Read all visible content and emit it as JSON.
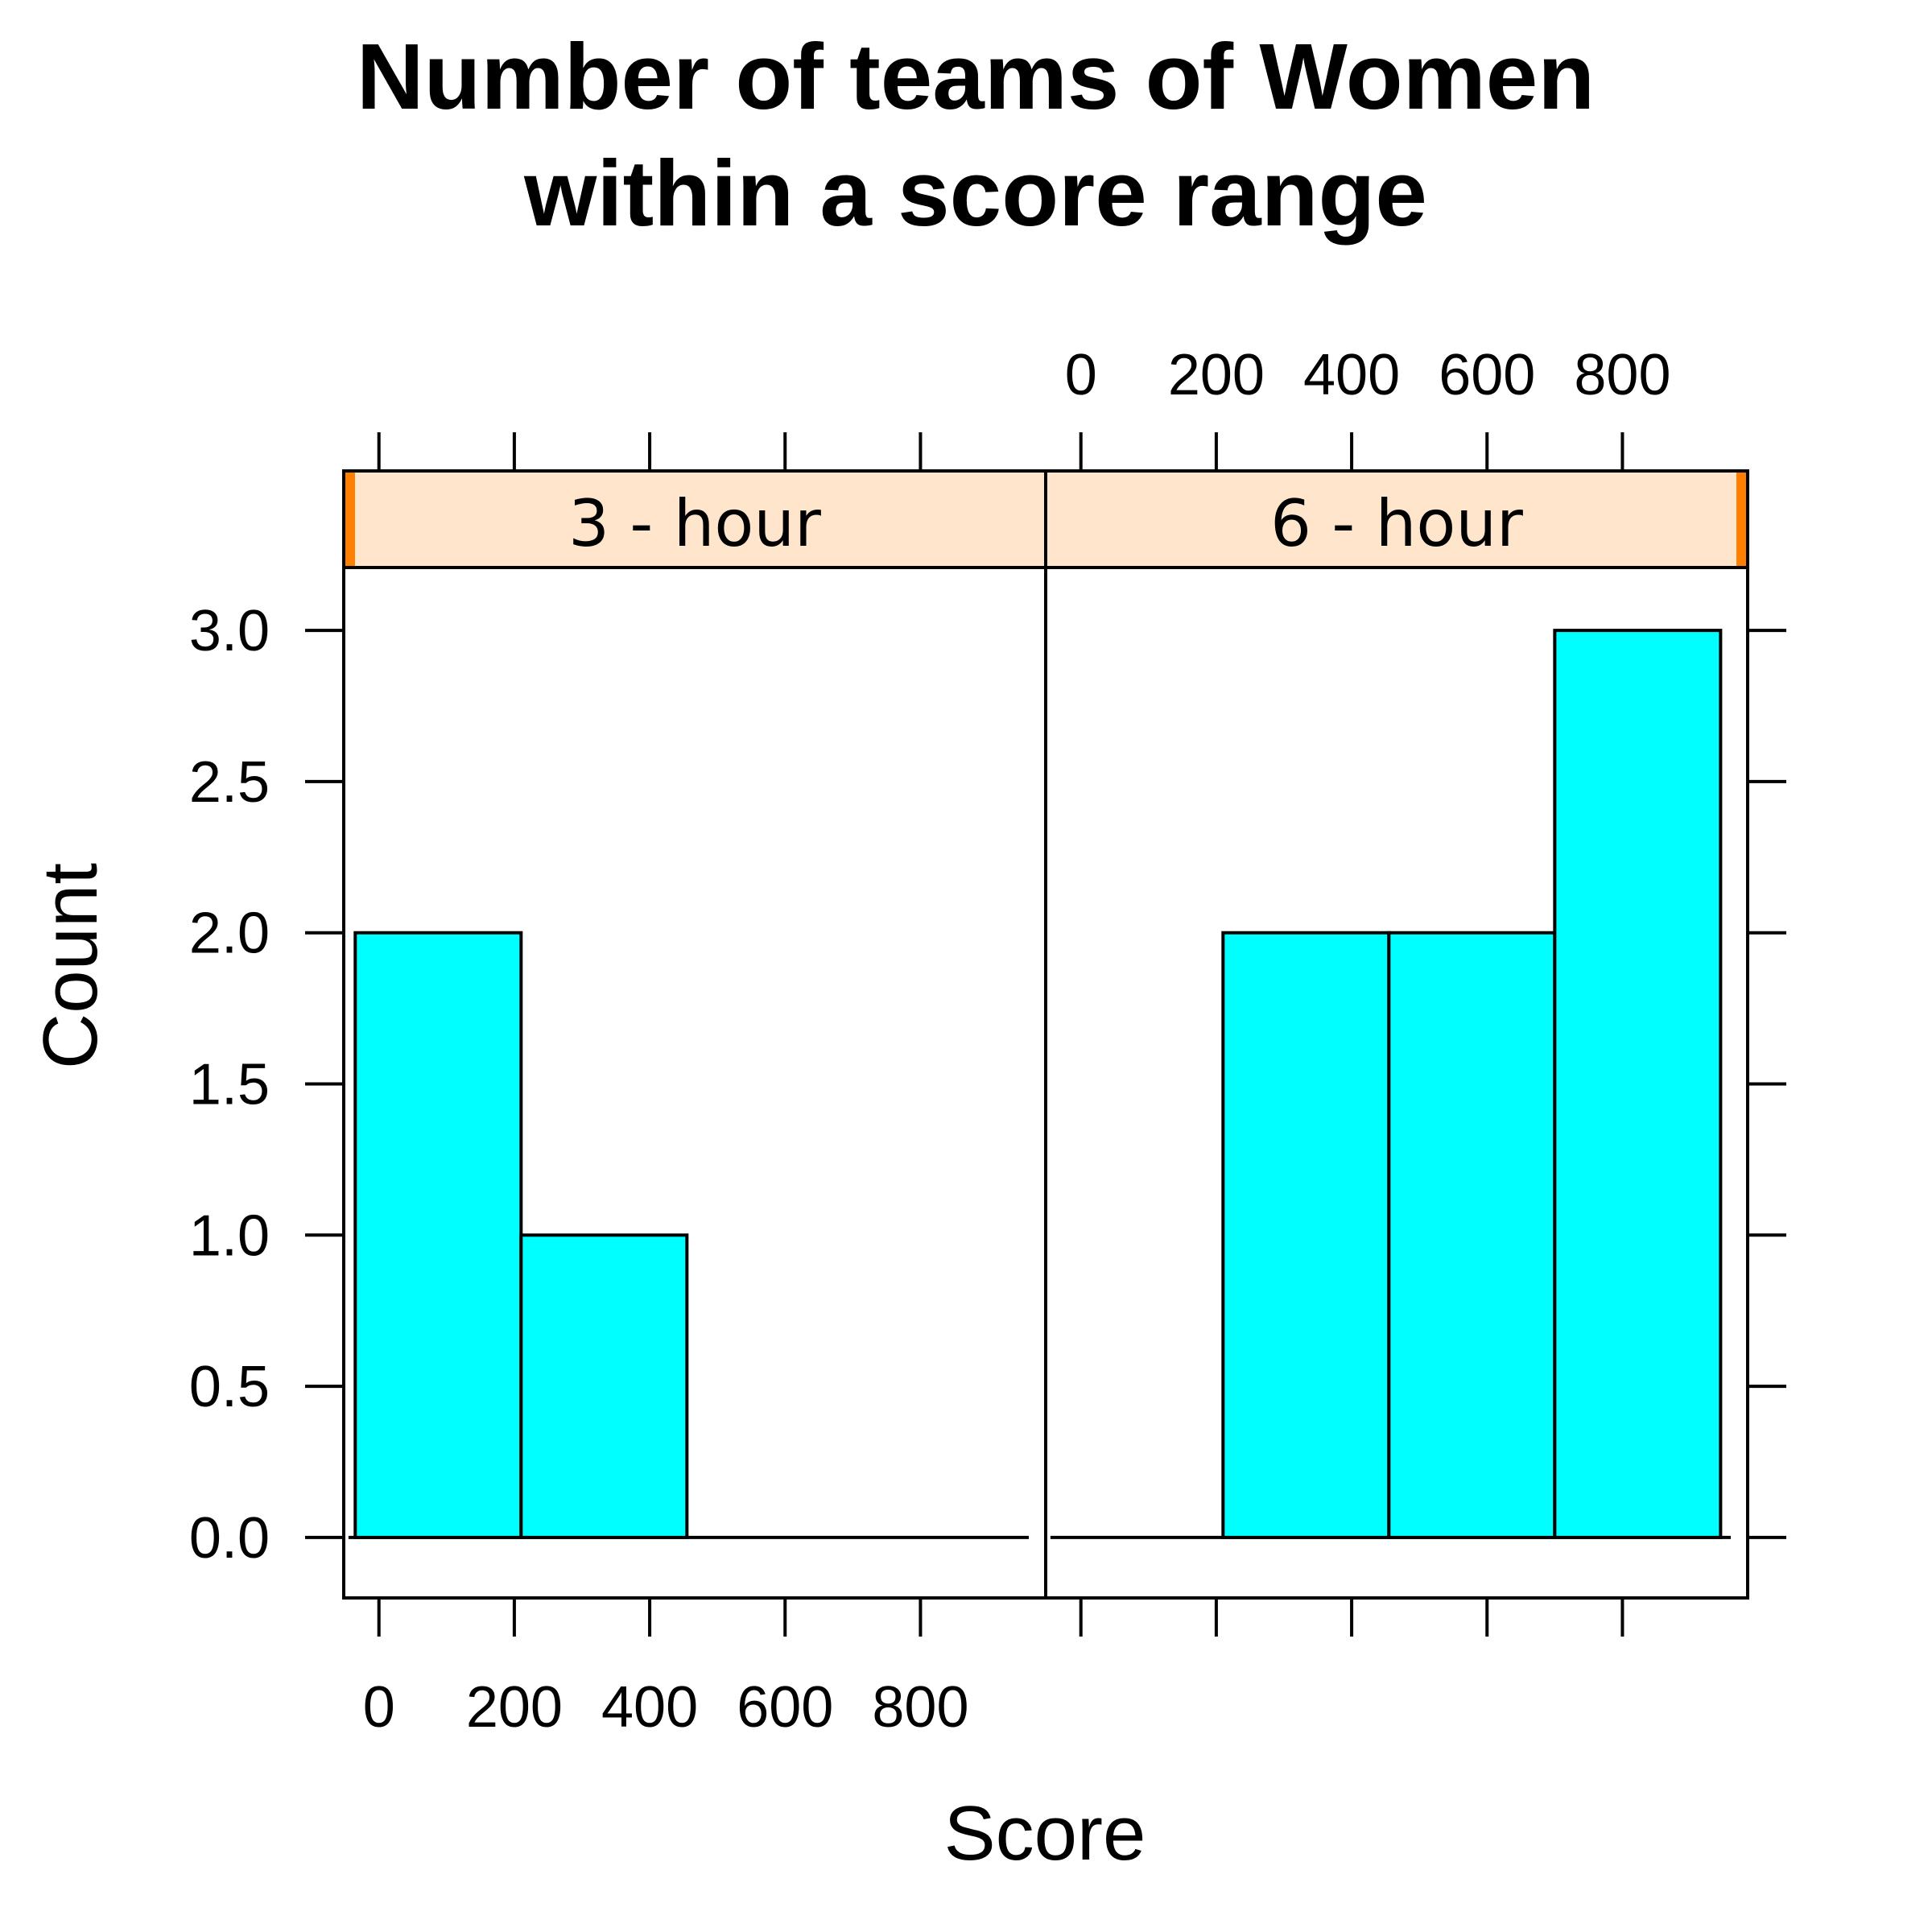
{
  "chart_data": {
    "type": "bar",
    "chart_kind": "lattice histogram",
    "title_lines": [
      "Number of teams of Women",
      "within a score range"
    ],
    "xlabel": "Score",
    "ylabel": "Count",
    "ylim": [
      -0.2,
      3.2
    ],
    "xlim": [
      -52,
      985
    ],
    "y_ticks": [
      "0.0",
      "0.5",
      "1.0",
      "1.5",
      "2.0",
      "2.5",
      "3.0"
    ],
    "y_tick_values": [
      0,
      0.5,
      1,
      1.5,
      2,
      2.5,
      3
    ],
    "x_ticks": [
      "0",
      "200",
      "400",
      "600",
      "800"
    ],
    "x_tick_values": [
      0,
      200,
      400,
      600,
      800
    ],
    "bar_fill": "#00ffff",
    "strip_fill": "#ffe5cc",
    "strip_indicator": "#ff7f00",
    "panels": [
      {
        "label": "3 - hour",
        "baseline_range": [
          -45,
          960
        ],
        "bins": [
          {
            "start": -35,
            "end": 210,
            "count": 2
          },
          {
            "start": 210,
            "end": 455,
            "count": 1
          }
        ]
      },
      {
        "label": "6 - hour",
        "baseline_range": [
          -45,
          960
        ],
        "bins": [
          {
            "start": 210,
            "end": 455,
            "count": 2
          },
          {
            "start": 455,
            "end": 700,
            "count": 2
          },
          {
            "start": 700,
            "end": 945,
            "count": 3
          }
        ]
      }
    ]
  }
}
